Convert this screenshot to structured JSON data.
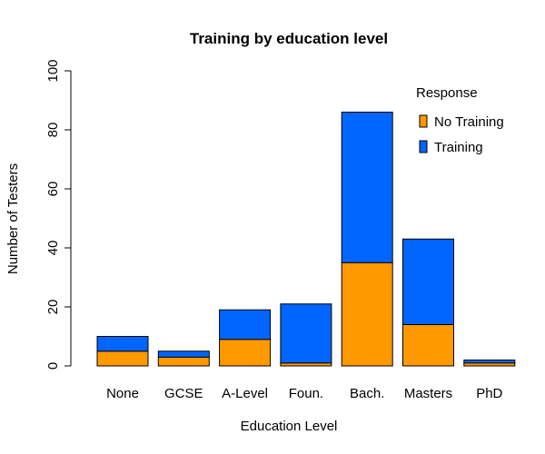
{
  "chart_data": {
    "type": "bar",
    "stacked": true,
    "title": "Training by education level",
    "xlabel": "Education Level",
    "ylabel": "Number of Testers",
    "ylim": [
      0,
      100
    ],
    "yticks": [
      0,
      20,
      40,
      60,
      80,
      100
    ],
    "grid": false,
    "categories": [
      "None",
      "GCSE",
      "A-Level",
      "Foun.",
      "Bach.",
      "Masters",
      "PhD"
    ],
    "series": [
      {
        "name": "No Training",
        "color": "#FF9900",
        "values": [
          5,
          3,
          9,
          1,
          35,
          14,
          1
        ]
      },
      {
        "name": "Training",
        "color": "#0066FF",
        "values": [
          5,
          2,
          10,
          20,
          51,
          29,
          1
        ]
      }
    ],
    "legend": {
      "title": "Response",
      "placement": "top-right"
    }
  }
}
